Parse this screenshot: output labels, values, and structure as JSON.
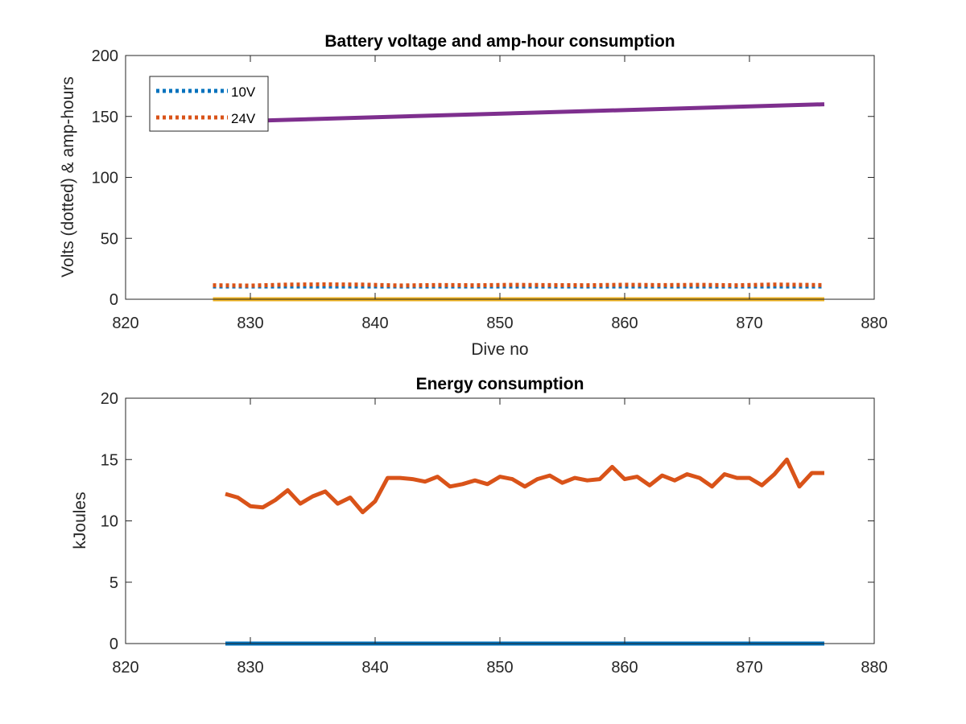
{
  "chart_data": [
    {
      "type": "line",
      "title": "Battery voltage and amp-hour consumption",
      "xlabel": "Dive no",
      "ylabel": "Volts (dotted) & amp-hours",
      "xlim": [
        820,
        880
      ],
      "ylim": [
        0,
        200
      ],
      "xticks": [
        820,
        830,
        840,
        850,
        860,
        870,
        880
      ],
      "yticks": [
        0,
        50,
        100,
        150,
        200
      ],
      "grid": false,
      "legend_position": "top-left",
      "series": [
        {
          "name": "10V",
          "style": "dotted",
          "color": "#0072BD",
          "in_legend": true,
          "x": [
            827,
            876
          ],
          "y": [
            10.5,
            10.5
          ]
        },
        {
          "name": "24V",
          "style": "dotted",
          "color": "#D95319",
          "in_legend": true,
          "x": [
            827,
            830,
            833,
            836,
            839,
            842,
            845,
            848,
            851,
            854,
            857,
            860,
            863,
            866,
            869,
            872,
            876
          ],
          "y": [
            11.5,
            11.2,
            12.0,
            12.2,
            12.0,
            11.3,
            11.7,
            11.5,
            11.8,
            11.6,
            11.5,
            11.9,
            11.6,
            11.8,
            11.5,
            12.1,
            11.6
          ]
        },
        {
          "style": "solid",
          "color": "#EDB120",
          "in_legend": false,
          "x": [
            827,
            876
          ],
          "y": [
            0,
            0
          ]
        },
        {
          "style": "solid",
          "color": "#7E2F8E",
          "in_legend": false,
          "x": [
            827,
            876
          ],
          "y": [
            145.5,
            160
          ]
        }
      ]
    },
    {
      "type": "line",
      "title": "Energy consumption",
      "xlabel": "",
      "ylabel": "kJoules",
      "xlim": [
        820,
        880
      ],
      "ylim": [
        0,
        20
      ],
      "xticks": [
        820,
        830,
        840,
        850,
        860,
        870,
        880
      ],
      "yticks": [
        0,
        5,
        10,
        15,
        20
      ],
      "grid": false,
      "series": [
        {
          "style": "solid",
          "color": "#0072BD",
          "x": [
            828,
            876
          ],
          "y": [
            0,
            0
          ]
        },
        {
          "style": "solid",
          "color": "#D95319",
          "x": [
            828,
            829,
            830,
            831,
            832,
            833,
            834,
            835,
            836,
            837,
            838,
            839,
            840,
            841,
            842,
            843,
            844,
            845,
            846,
            847,
            848,
            849,
            850,
            851,
            852,
            853,
            854,
            855,
            856,
            857,
            858,
            859,
            860,
            861,
            862,
            863,
            864,
            865,
            866,
            867,
            868,
            869,
            870,
            871,
            872,
            873,
            874,
            875,
            876
          ],
          "y": [
            12.2,
            11.9,
            11.2,
            11.1,
            11.7,
            12.5,
            11.4,
            12.0,
            12.4,
            11.4,
            11.9,
            10.7,
            11.6,
            13.5,
            13.5,
            13.4,
            13.2,
            13.6,
            12.8,
            13.0,
            13.3,
            13.0,
            13.6,
            13.4,
            12.8,
            13.4,
            13.7,
            13.1,
            13.5,
            13.3,
            13.4,
            14.4,
            13.4,
            13.6,
            12.9,
            13.7,
            13.3,
            13.8,
            13.5,
            12.8,
            13.8,
            13.5,
            13.5,
            12.9,
            13.8,
            15.0,
            12.8,
            13.9,
            13.9
          ]
        }
      ]
    }
  ]
}
